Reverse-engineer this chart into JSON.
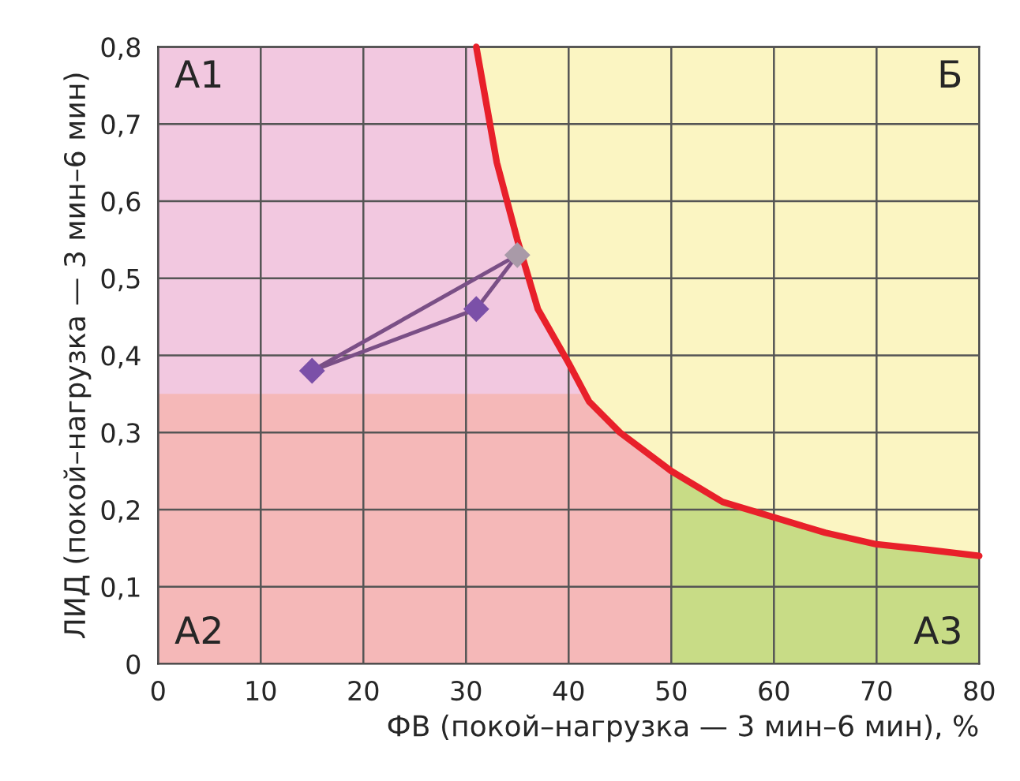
{
  "chart_data": {
    "type": "area",
    "xlabel": "ФВ (покой–нагрузка — 3 мин–6 мин), %",
    "ylabel": "ЛИД (покой–нагрузка — 3 мин–6 мин)",
    "xlim": [
      0,
      80
    ],
    "ylim": [
      0,
      0.8
    ],
    "xticks": [
      0,
      10,
      20,
      30,
      40,
      50,
      60,
      70,
      80
    ],
    "yticks": [
      {
        "value": 0,
        "label": "0"
      },
      {
        "value": 0.1,
        "label": "0,1"
      },
      {
        "value": 0.2,
        "label": "0,2"
      },
      {
        "value": 0.3,
        "label": "0,3"
      },
      {
        "value": 0.4,
        "label": "0,4"
      },
      {
        "value": 0.5,
        "label": "0,5"
      },
      {
        "value": 0.6,
        "label": "0,6"
      },
      {
        "value": 0.7,
        "label": "0,7"
      },
      {
        "value": 0.8,
        "label": "0,8"
      }
    ],
    "grid": true,
    "legend": false,
    "series": [
      {
        "color": "#fbf5c2",
        "x": [
          31,
          80
        ],
        "values": [
          0.8,
          0.8
        ]
      },
      {
        "color": "#f2c8e0",
        "x": [
          0,
          31,
          33,
          35,
          37,
          40,
          41.5
        ],
        "values": [
          0.8,
          0.8,
          0.65,
          0.55,
          0.46,
          0.39,
          0.35
        ]
      },
      {
        "color": "#f5b8b8",
        "x": [
          0,
          41.5,
          42,
          45,
          50
        ],
        "values": [
          0.35,
          0.35,
          0.34,
          0.3,
          0.25
        ]
      },
      {
        "color": "#c8dc86",
        "x": [
          50,
          55,
          60,
          65,
          70,
          75,
          80
        ],
        "values": [
          0.25,
          0.21,
          0.19,
          0.17,
          0.155,
          0.148,
          0.14
        ]
      },
      {
        "type": "line",
        "color": "#e8202a",
        "x": [
          31,
          33,
          35,
          37,
          40,
          42,
          45,
          50,
          55,
          60,
          65,
          70,
          75,
          80
        ],
        "values": [
          0.8,
          0.65,
          0.55,
          0.46,
          0.39,
          0.34,
          0.3,
          0.25,
          0.21,
          0.19,
          0.17,
          0.155,
          0.148,
          0.14
        ]
      },
      {
        "type": "line",
        "color": "#7a4f86",
        "x": [
          15,
          35
        ],
        "values": [
          0.38,
          0.53
        ]
      },
      {
        "type": "line",
        "color": "#7a4f86",
        "x": [
          15,
          31,
          35
        ],
        "values": [
          0.38,
          0.46,
          0.53
        ]
      },
      {
        "type": "scatter",
        "marker": "diamond",
        "colors": [
          "#7b50a8",
          "#7b50a8",
          "#a99aa8"
        ],
        "x": [
          15,
          31,
          35
        ],
        "values": [
          0.38,
          0.46,
          0.53
        ]
      }
    ],
    "annotations": [
      "А1",
      "А2",
      "А3",
      "Б"
    ]
  }
}
